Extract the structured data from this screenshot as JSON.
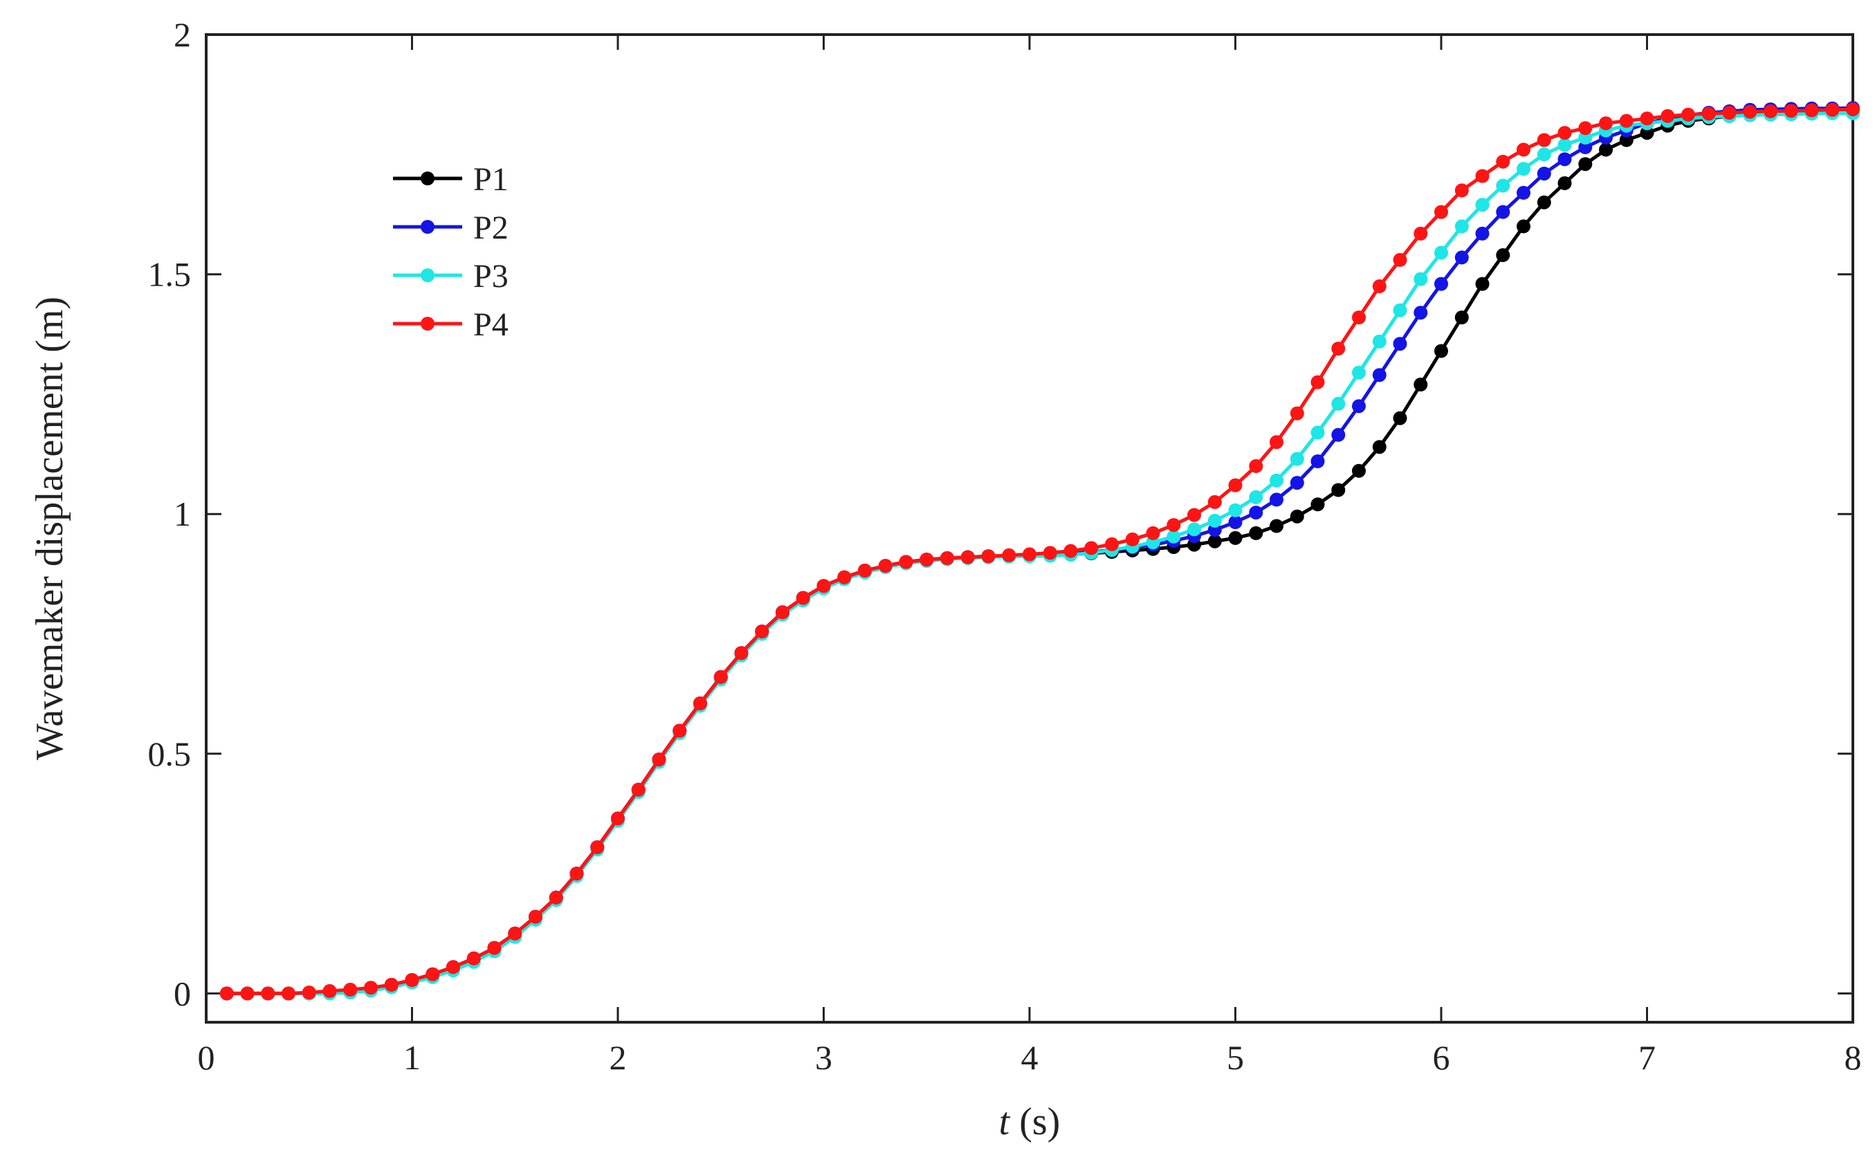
{
  "chart_data": {
    "type": "line",
    "xlabel_var": "t",
    "xlabel_unit": " (s)",
    "ylabel": "Wavemaker displacement (m)",
    "xlim": [
      0,
      8
    ],
    "ylim": [
      -0.06,
      2
    ],
    "xticks": [
      0,
      1,
      2,
      3,
      4,
      5,
      6,
      7,
      8
    ],
    "xtick_labels": [
      "0",
      "1",
      "2",
      "3",
      "4",
      "5",
      "6",
      "7",
      "8"
    ],
    "yticks": [
      0,
      0.5,
      1,
      1.5,
      2
    ],
    "ytick_labels": [
      "0",
      "0.5",
      "1",
      "1.5",
      "2"
    ],
    "legend_position": "top-left",
    "grid": false,
    "marker": "circle",
    "x": [
      0.1,
      0.2,
      0.3,
      0.4,
      0.5,
      0.6,
      0.7,
      0.8,
      0.9,
      1.0,
      1.1,
      1.2,
      1.3,
      1.4,
      1.5,
      1.6,
      1.7,
      1.8,
      1.9,
      2.0,
      2.1,
      2.2,
      2.3,
      2.4,
      2.5,
      2.6,
      2.7,
      2.8,
      2.9,
      3.0,
      3.1,
      3.2,
      3.3,
      3.4,
      3.5,
      3.6,
      3.7,
      3.8,
      3.9,
      4.0,
      4.1,
      4.2,
      4.3,
      4.4,
      4.5,
      4.6,
      4.7,
      4.8,
      4.9,
      5.0,
      5.1,
      5.2,
      5.3,
      5.4,
      5.5,
      5.6,
      5.7,
      5.8,
      5.9,
      6.0,
      6.1,
      6.2,
      6.3,
      6.4,
      6.5,
      6.6,
      6.7,
      6.8,
      6.9,
      7.0,
      7.1,
      7.2,
      7.3,
      7.4,
      7.5,
      7.6,
      7.7,
      7.8,
      7.9,
      8.0
    ],
    "series": [
      {
        "name": "P1",
        "color": "#000000",
        "values": [
          0,
          0,
          0,
          0,
          0,
          0.002,
          0.005,
          0.01,
          0.018,
          0.028,
          0.04,
          0.055,
          0.073,
          0.095,
          0.125,
          0.16,
          0.2,
          0.25,
          0.305,
          0.365,
          0.425,
          0.488,
          0.548,
          0.605,
          0.66,
          0.71,
          0.755,
          0.795,
          0.825,
          0.85,
          0.868,
          0.882,
          0.892,
          0.9,
          0.905,
          0.908,
          0.91,
          0.912,
          0.913,
          0.914,
          0.915,
          0.916,
          0.918,
          0.921,
          0.924,
          0.927,
          0.931,
          0.936,
          0.943,
          0.95,
          0.96,
          0.975,
          0.995,
          1.02,
          1.05,
          1.09,
          1.14,
          1.2,
          1.27,
          1.34,
          1.41,
          1.48,
          1.54,
          1.6,
          1.65,
          1.69,
          1.73,
          1.76,
          1.78,
          1.795,
          1.81,
          1.82,
          1.825,
          1.83,
          1.835,
          1.838,
          1.84,
          1.842,
          1.843,
          1.844
        ]
      },
      {
        "name": "P2",
        "color": "#1414e6",
        "values": [
          0,
          0,
          0,
          0,
          0,
          0.002,
          0.005,
          0.01,
          0.018,
          0.028,
          0.04,
          0.055,
          0.073,
          0.095,
          0.125,
          0.16,
          0.2,
          0.25,
          0.305,
          0.365,
          0.425,
          0.488,
          0.548,
          0.605,
          0.66,
          0.71,
          0.755,
          0.795,
          0.825,
          0.85,
          0.868,
          0.882,
          0.892,
          0.9,
          0.905,
          0.908,
          0.91,
          0.912,
          0.913,
          0.914,
          0.916,
          0.918,
          0.921,
          0.925,
          0.93,
          0.936,
          0.944,
          0.954,
          0.967,
          0.983,
          1.003,
          1.03,
          1.065,
          1.11,
          1.165,
          1.225,
          1.29,
          1.355,
          1.42,
          1.48,
          1.535,
          1.585,
          1.63,
          1.67,
          1.71,
          1.74,
          1.765,
          1.785,
          1.8,
          1.815,
          1.825,
          1.832,
          1.837,
          1.84,
          1.843,
          1.844,
          1.845,
          1.846,
          1.846,
          1.847
        ]
      },
      {
        "name": "P3",
        "color": "#1ee6e6",
        "values": [
          0,
          0,
          0,
          0,
          0,
          0,
          0.002,
          0.006,
          0.013,
          0.023,
          0.034,
          0.048,
          0.066,
          0.088,
          0.118,
          0.154,
          0.195,
          0.245,
          0.3,
          0.36,
          0.42,
          0.483,
          0.543,
          0.6,
          0.655,
          0.705,
          0.75,
          0.79,
          0.82,
          0.845,
          0.864,
          0.878,
          0.889,
          0.897,
          0.902,
          0.906,
          0.908,
          0.91,
          0.911,
          0.912,
          0.913,
          0.915,
          0.919,
          0.925,
          0.932,
          0.941,
          0.953,
          0.968,
          0.986,
          1.008,
          1.035,
          1.07,
          1.115,
          1.17,
          1.23,
          1.295,
          1.36,
          1.425,
          1.49,
          1.545,
          1.6,
          1.645,
          1.685,
          1.72,
          1.75,
          1.77,
          1.785,
          1.8,
          1.81,
          1.815,
          1.82,
          1.825,
          1.828,
          1.83,
          1.832,
          1.833,
          1.834,
          1.835,
          1.836,
          1.836
        ]
      },
      {
        "name": "P4",
        "color": "#ff1414",
        "values": [
          0,
          0,
          0,
          0,
          0.002,
          0.005,
          0.008,
          0.012,
          0.018,
          0.028,
          0.04,
          0.055,
          0.073,
          0.095,
          0.125,
          0.16,
          0.2,
          0.25,
          0.305,
          0.365,
          0.425,
          0.488,
          0.548,
          0.605,
          0.66,
          0.71,
          0.755,
          0.795,
          0.825,
          0.85,
          0.868,
          0.882,
          0.892,
          0.9,
          0.905,
          0.908,
          0.91,
          0.912,
          0.914,
          0.916,
          0.919,
          0.923,
          0.929,
          0.937,
          0.947,
          0.96,
          0.977,
          0.998,
          1.025,
          1.06,
          1.1,
          1.15,
          1.21,
          1.275,
          1.345,
          1.41,
          1.475,
          1.53,
          1.585,
          1.63,
          1.675,
          1.705,
          1.735,
          1.76,
          1.78,
          1.795,
          1.805,
          1.815,
          1.82,
          1.825,
          1.83,
          1.833,
          1.835,
          1.837,
          1.839,
          1.84,
          1.841,
          1.842,
          1.843,
          1.844
        ]
      }
    ]
  }
}
